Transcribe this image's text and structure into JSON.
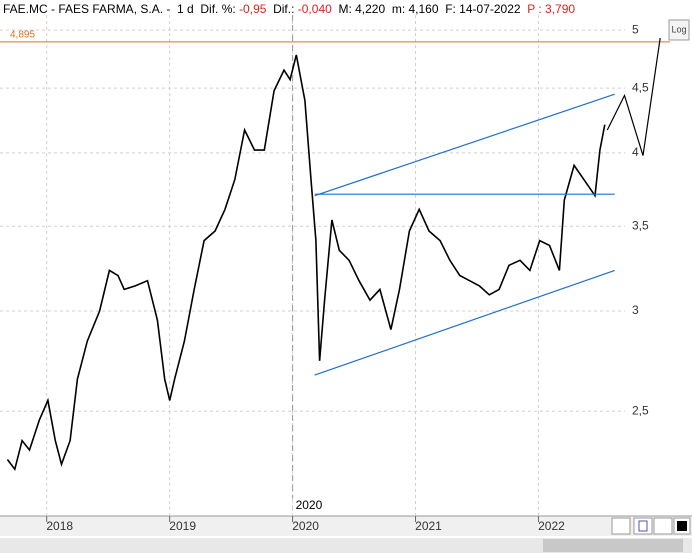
{
  "header": {
    "segments": [
      {
        "text": "FAE.MC - FAES FARMA, S.A. -  1 d  Dif. %: ",
        "color": "#000000"
      },
      {
        "text": "-0,95",
        "color": "#e02020"
      },
      {
        "text": "  Dif.: ",
        "color": "#000000"
      },
      {
        "text": "-0,040",
        "color": "#e02020"
      },
      {
        "text": "  M: 4,220  m: 4,160  F: 14-07-2022  ",
        "color": "#000000"
      },
      {
        "text": "P : 3,790",
        "color": "#e02020"
      }
    ]
  },
  "log_button": "Log",
  "chart_data": {
    "type": "line",
    "log_scale": true,
    "grid": true,
    "xlim": [
      2017.62,
      2023.07
    ],
    "xticks": [
      2018,
      2019,
      2020,
      2021,
      2022
    ],
    "ylim": [
      2.07,
      5.14
    ],
    "yticks": [
      {
        "value": 2.5,
        "label": "2,5"
      },
      3,
      {
        "value": 3.5,
        "label": "3,5"
      },
      4,
      {
        "value": 4.5,
        "label": "4,5"
      },
      5
    ],
    "reference_line": {
      "value": 4.895,
      "label": "4,895",
      "color": "#e07020"
    },
    "cursor_x": 2020,
    "series": [
      {
        "color": "#000000",
        "x": [
          2017.68,
          2017.74,
          2017.8,
          2017.86,
          2017.94,
          2018.01,
          2018.07,
          2018.12,
          2018.19,
          2018.25,
          2018.33,
          2018.43,
          2018.51,
          2018.58,
          2018.63,
          2018.72,
          2018.82,
          2018.9,
          2018.96,
          2019.0,
          2019.04,
          2019.12,
          2019.2,
          2019.28,
          2019.37,
          2019.45,
          2019.53,
          2019.61,
          2019.69,
          2019.77,
          2019.85,
          2019.93,
          2019.98,
          2020.03,
          2020.1,
          2020.15,
          2020.19,
          2020.22,
          2020.26,
          2020.32,
          2020.38,
          2020.46,
          2020.54,
          2020.63,
          2020.71,
          2020.8,
          2020.87,
          2020.95,
          2021.03,
          2021.11,
          2021.2,
          2021.28,
          2021.36,
          2021.44,
          2021.52,
          2021.6,
          2021.68,
          2021.76,
          2021.85,
          2021.93,
          2022.01,
          2022.09,
          2022.17,
          2022.21,
          2022.29,
          2022.37,
          2022.46,
          2022.5,
          2022.54
        ],
        "values": [
          2.29,
          2.25,
          2.37,
          2.33,
          2.46,
          2.55,
          2.37,
          2.27,
          2.37,
          2.65,
          2.84,
          3.0,
          3.23,
          3.2,
          3.12,
          3.14,
          3.17,
          2.95,
          2.65,
          2.55,
          2.65,
          2.84,
          3.12,
          3.41,
          3.47,
          3.61,
          3.81,
          4.17,
          4.02,
          4.02,
          4.48,
          4.65,
          4.57,
          4.78,
          4.4,
          3.81,
          3.41,
          2.74,
          3.06,
          3.54,
          3.35,
          3.29,
          3.17,
          3.06,
          3.12,
          2.9,
          3.12,
          3.47,
          3.61,
          3.47,
          3.41,
          3.29,
          3.2,
          3.17,
          3.14,
          3.09,
          3.12,
          3.26,
          3.29,
          3.23,
          3.41,
          3.38,
          3.23,
          3.67,
          3.91,
          3.81,
          3.7,
          4.02,
          4.21
        ]
      },
      {
        "color": "#000000",
        "x": [
          2022.56,
          2022.7,
          2022.85,
          2022.99
        ],
        "values": [
          4.17,
          4.44,
          3.98,
          4.93
        ]
      },
      {
        "color": "#1f6fc8",
        "x": [
          2020.18,
          2022.62
        ],
        "values": [
          3.7,
          4.45
        ]
      },
      {
        "color": "#1f6fc8",
        "x": [
          2020.18,
          2022.62
        ],
        "values": [
          3.71,
          3.71
        ]
      },
      {
        "color": "#1f6fc8",
        "x": [
          2020.18,
          2022.62
        ],
        "values": [
          2.67,
          3.23
        ]
      }
    ]
  }
}
